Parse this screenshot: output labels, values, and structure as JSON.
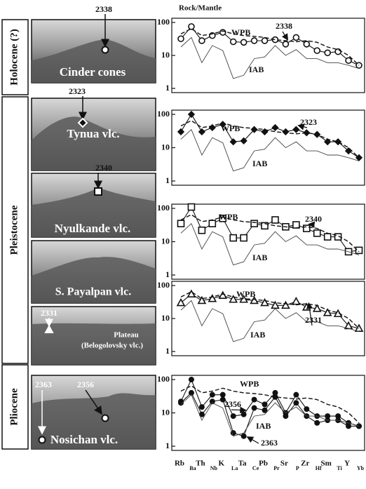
{
  "eras": [
    {
      "label": "Holocene (?)"
    },
    {
      "label": "Pleistocene"
    },
    {
      "label": "Pliocene"
    }
  ],
  "photos": [
    {
      "caption": "Cinder cones",
      "samples": [
        "2338"
      ]
    },
    {
      "caption": "Tynua vlc.",
      "samples": [
        "2323"
      ]
    },
    {
      "caption": "Nyulkande vlc.",
      "samples": [
        "2340"
      ]
    },
    {
      "caption": "S. Payalpan vlc."
    },
    {
      "caption": "Plateau",
      "subcaption": "(Belogolovsky vlc.)",
      "samples": [
        "2331"
      ]
    },
    {
      "caption": "Nosichan vlc.",
      "samples": [
        "2363",
        "2356"
      ]
    }
  ],
  "chart_data": [
    {
      "type": "line",
      "ylabel": "Rock/Mantle",
      "log": true,
      "ylim": [
        1,
        100
      ],
      "yticks": [
        1,
        10,
        100
      ],
      "series": [
        {
          "name": "2338",
          "marker": "open-circle",
          "style": "solid",
          "color": "#111",
          "values": [
            32,
            75,
            28,
            40,
            50,
            26,
            25,
            28,
            28,
            30,
            22,
            35,
            22,
            14,
            12,
            13,
            7,
            5
          ]
        },
        {
          "name": "WPB",
          "style": "dashed",
          "color": "#111",
          "values": [
            45,
            65,
            40,
            45,
            55,
            45,
            40,
            38,
            35,
            30,
            28,
            26,
            28,
            25,
            18,
            15,
            10,
            5
          ]
        },
        {
          "name": "IAB",
          "style": "thin",
          "color": "#444",
          "values": [
            18,
            35,
            6,
            20,
            14,
            2,
            2.5,
            8,
            9,
            20,
            10,
            15,
            8,
            8,
            6,
            6,
            5,
            4
          ]
        }
      ]
    },
    {
      "type": "line",
      "log": true,
      "ylim": [
        1,
        100
      ],
      "yticks": [
        1,
        10,
        100
      ],
      "series": [
        {
          "name": "2323",
          "marker": "diamond",
          "style": "solid",
          "color": "#111",
          "values": [
            30,
            100,
            30,
            40,
            50,
            15,
            16,
            35,
            30,
            40,
            30,
            35,
            28,
            25,
            15,
            15,
            8,
            5
          ]
        },
        {
          "name": "WPB",
          "style": "dashed",
          "color": "#111",
          "values": [
            45,
            65,
            40,
            45,
            55,
            45,
            40,
            38,
            35,
            30,
            28,
            26,
            28,
            25,
            18,
            15,
            10,
            5
          ]
        },
        {
          "name": "IAB",
          "style": "thin",
          "color": "#444",
          "values": [
            18,
            35,
            6,
            20,
            14,
            2,
            2.5,
            8,
            9,
            20,
            10,
            15,
            8,
            8,
            6,
            6,
            5,
            4
          ]
        }
      ]
    },
    {
      "type": "line",
      "log": true,
      "ylim": [
        1,
        100
      ],
      "yticks": [
        1,
        10,
        100
      ],
      "series": [
        {
          "name": "2340",
          "marker": "open-square",
          "style": "solid",
          "color": "#111",
          "values": [
            35,
            110,
            22,
            35,
            50,
            13,
            13,
            35,
            30,
            45,
            28,
            32,
            25,
            18,
            14,
            14,
            5,
            5.5
          ]
        },
        {
          "name": "WPB",
          "style": "dashed",
          "color": "#111",
          "values": [
            45,
            65,
            40,
            45,
            55,
            45,
            40,
            38,
            35,
            30,
            28,
            26,
            28,
            25,
            18,
            15,
            10,
            5
          ]
        },
        {
          "name": "IAB",
          "style": "thin",
          "color": "#444",
          "values": [
            18,
            35,
            6,
            20,
            14,
            2,
            2.5,
            8,
            9,
            20,
            10,
            15,
            8,
            8,
            6,
            6,
            5,
            4
          ]
        }
      ]
    },
    {
      "type": "line",
      "log": true,
      "ylim": [
        1,
        100
      ],
      "yticks": [
        1,
        10,
        100
      ],
      "series": [
        {
          "name": "2331",
          "marker": "open-triangle",
          "style": "solid",
          "color": "#111",
          "values": [
            30,
            55,
            35,
            40,
            50,
            38,
            38,
            35,
            30,
            25,
            25,
            33,
            22,
            20,
            15,
            14,
            6,
            5
          ]
        },
        {
          "name": "WPB",
          "style": "dashed",
          "color": "#111",
          "values": [
            45,
            65,
            40,
            45,
            55,
            45,
            40,
            38,
            35,
            30,
            28,
            26,
            28,
            25,
            18,
            15,
            10,
            5
          ]
        },
        {
          "name": "IAB",
          "style": "thin",
          "color": "#444",
          "values": [
            18,
            35,
            6,
            20,
            14,
            2,
            2.5,
            8,
            9,
            20,
            10,
            15,
            8,
            8,
            6,
            6,
            5,
            4
          ]
        }
      ]
    },
    {
      "type": "line",
      "log": true,
      "ylim": [
        1,
        100
      ],
      "yticks": [
        1,
        10,
        100
      ],
      "categories": [
        "Rb",
        "Ba",
        "Th",
        "Nb",
        "K",
        "La",
        "Ta",
        "Ce",
        "Pb",
        "Pr",
        "Sr",
        "P",
        "Zr",
        "Hf",
        "Sm",
        "Ti",
        "Y",
        "Yb"
      ],
      "series": [
        {
          "name": "2356",
          "marker": "filled-circle",
          "style": "solid",
          "color": "#111",
          "values": [
            22,
            100,
            15,
            35,
            35,
            8,
            9,
            25,
            18,
            40,
            10,
            35,
            13,
            8,
            8,
            8,
            5,
            4
          ]
        },
        {
          "name": "2363",
          "marker": "filled-circle",
          "style": "solid",
          "color": "#111",
          "values": [
            20,
            40,
            9,
            22,
            25,
            2.5,
            2,
            14,
            12,
            30,
            8,
            20,
            8,
            5,
            6,
            6,
            4,
            4
          ]
        },
        {
          "name": "WPB",
          "style": "dashed",
          "color": "#111",
          "values": [
            45,
            65,
            40,
            45,
            55,
            45,
            40,
            38,
            35,
            30,
            28,
            26,
            28,
            25,
            18,
            15,
            10,
            5
          ]
        },
        {
          "name": "IAB",
          "style": "thin",
          "color": "#444",
          "values": [
            18,
            35,
            6,
            20,
            14,
            2,
            2.5,
            8,
            9,
            20,
            10,
            15,
            8,
            8,
            6,
            6,
            5,
            4
          ]
        }
      ]
    }
  ]
}
